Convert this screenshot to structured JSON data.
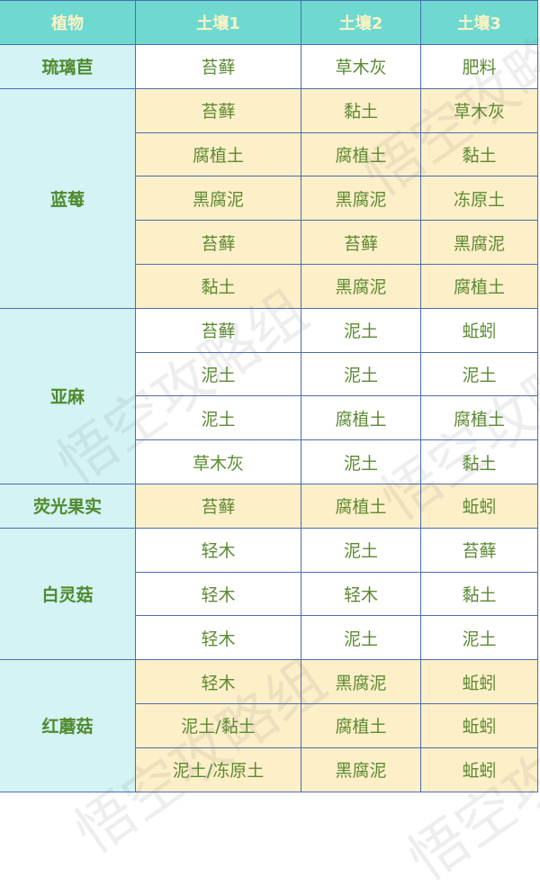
{
  "headers": [
    "植物",
    "土壤1",
    "土壤2",
    "土壤3"
  ],
  "groups": [
    {
      "plant": "琉璃苣",
      "shade": "white",
      "rows": [
        [
          "苔藓",
          "草木灰",
          "肥料"
        ]
      ]
    },
    {
      "plant": "蓝莓",
      "shade": "yellow",
      "rows": [
        [
          "苔藓",
          "黏土",
          "草木灰"
        ],
        [
          "腐植土",
          "腐植土",
          "黏土"
        ],
        [
          "黑腐泥",
          "黑腐泥",
          "冻原土"
        ],
        [
          "苔藓",
          "苔藓",
          "黑腐泥"
        ],
        [
          "黏土",
          "黑腐泥",
          "腐植土"
        ]
      ]
    },
    {
      "plant": "亚麻",
      "shade": "white",
      "rows": [
        [
          "苔藓",
          "泥土",
          "蚯蚓"
        ],
        [
          "泥土",
          "泥土",
          "泥土"
        ],
        [
          "泥土",
          "腐植土",
          "腐植土"
        ],
        [
          "草木灰",
          "泥土",
          "黏土"
        ]
      ]
    },
    {
      "plant": "荧光果实",
      "shade": "yellow",
      "rows": [
        [
          "苔藓",
          "腐植土",
          "蚯蚓"
        ]
      ]
    },
    {
      "plant": "白灵菇",
      "shade": "white",
      "rows": [
        [
          "轻木",
          "泥土",
          "苔藓"
        ],
        [
          "轻木",
          "轻木",
          "黏土"
        ],
        [
          "轻木",
          "泥土",
          "泥土"
        ]
      ]
    },
    {
      "plant": "红蘑菇",
      "shade": "yellow",
      "rows": [
        [
          "轻木",
          "黑腐泥",
          "蚯蚓"
        ],
        [
          "泥土/黏土",
          "腐植土",
          "蚯蚓"
        ],
        [
          "泥土/冻原土",
          "黑腐泥",
          "蚯蚓"
        ]
      ]
    }
  ],
  "watermark": "悟空攻略组",
  "colors": {
    "header": "#6fd9d1",
    "plant_col": "#d3f3f4",
    "yellow": "#fdefc8",
    "border": "#4b6db4",
    "text": "#5c8a33"
  }
}
